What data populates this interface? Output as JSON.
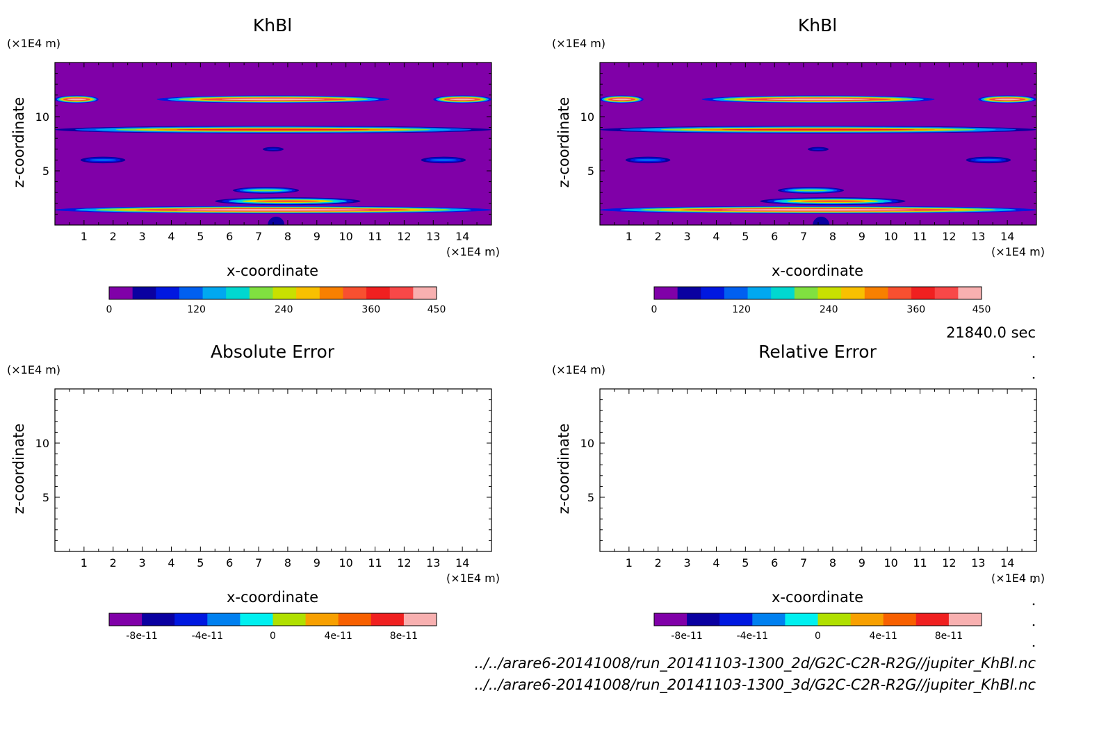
{
  "chart_data": [
    {
      "type": "heatmap",
      "title": "KhBl",
      "xlabel": "x-coordinate",
      "ylabel": "z-coordinate",
      "x_unit": "(×1E4 m)",
      "y_unit": "(×1E4 m)",
      "xlim": [
        0,
        15
      ],
      "ylim": [
        0,
        15
      ],
      "x_ticks": [
        "1",
        "2",
        "3",
        "4",
        "5",
        "6",
        "7",
        "8",
        "9",
        "10",
        "11",
        "12",
        "13",
        "14"
      ],
      "y_ticks": [
        "5",
        "10"
      ],
      "colorbar": {
        "labels": [
          "0",
          "120",
          "240",
          "360",
          "450"
        ],
        "levels": [
          0,
          30,
          60,
          90,
          120,
          150,
          180,
          210,
          240,
          270,
          300,
          330,
          360,
          390,
          420,
          450
        ],
        "colors": [
          "#8000a8",
          "#0a00a0",
          "#0018e0",
          "#0060f0",
          "#00a8f0",
          "#00d8d0",
          "#80e040",
          "#c8e000",
          "#f8c000",
          "#f88000",
          "#f85030",
          "#f02020",
          "#f84848",
          "#f8b0b0"
        ]
      },
      "bands": [
        {
          "z": 1.4,
          "x_range": [
            0,
            15
          ],
          "peak": 420
        },
        {
          "z": 2.2,
          "x_range": [
            5.5,
            10.5
          ],
          "peak": 300
        },
        {
          "z": 3.2,
          "x_range": [
            6.0,
            8.5
          ],
          "peak": 200
        },
        {
          "z": 6.0,
          "x_range": [
            0.8,
            2.5
          ],
          "peak": 110
        },
        {
          "z": 6.0,
          "x_range": [
            12.5,
            14.2
          ],
          "peak": 110
        },
        {
          "z": 7.0,
          "x_range": [
            7.0,
            8.0
          ],
          "peak": 60
        },
        {
          "z": 8.8,
          "x_range": [
            0,
            15
          ],
          "peak": 340
        },
        {
          "z": 11.6,
          "x_range": [
            0,
            1.5
          ],
          "peak": 420
        },
        {
          "z": 11.6,
          "x_range": [
            3.5,
            11.5
          ],
          "peak": 420
        },
        {
          "z": 11.6,
          "x_range": [
            13.0,
            15
          ],
          "peak": 420
        }
      ]
    },
    {
      "type": "heatmap",
      "title": "KhBl",
      "xlabel": "x-coordinate",
      "ylabel": "z-coordinate",
      "x_unit": "(×1E4 m)",
      "y_unit": "(×1E4 m)",
      "xlim": [
        0,
        15
      ],
      "ylim": [
        0,
        15
      ],
      "x_ticks": [
        "1",
        "2",
        "3",
        "4",
        "5",
        "6",
        "7",
        "8",
        "9",
        "10",
        "11",
        "12",
        "13",
        "14"
      ],
      "y_ticks": [
        "5",
        "10"
      ],
      "colorbar": {
        "labels": [
          "0",
          "120",
          "240",
          "360",
          "450"
        ],
        "levels": [
          0,
          30,
          60,
          90,
          120,
          150,
          180,
          210,
          240,
          270,
          300,
          330,
          360,
          390,
          420,
          450
        ],
        "colors": [
          "#8000a8",
          "#0a00a0",
          "#0018e0",
          "#0060f0",
          "#00a8f0",
          "#00d8d0",
          "#80e040",
          "#c8e000",
          "#f8c000",
          "#f88000",
          "#f85030",
          "#f02020",
          "#f84848",
          "#f8b0b0"
        ]
      },
      "bands": [
        {
          "z": 1.4,
          "x_range": [
            0,
            15
          ],
          "peak": 420
        },
        {
          "z": 2.2,
          "x_range": [
            5.5,
            10.5
          ],
          "peak": 300
        },
        {
          "z": 3.2,
          "x_range": [
            6.0,
            8.5
          ],
          "peak": 200
        },
        {
          "z": 6.0,
          "x_range": [
            0.8,
            2.5
          ],
          "peak": 110
        },
        {
          "z": 6.0,
          "x_range": [
            12.5,
            14.2
          ],
          "peak": 110
        },
        {
          "z": 7.0,
          "x_range": [
            7.0,
            8.0
          ],
          "peak": 60
        },
        {
          "z": 8.8,
          "x_range": [
            0,
            15
          ],
          "peak": 340
        },
        {
          "z": 11.6,
          "x_range": [
            0,
            1.5
          ],
          "peak": 420
        },
        {
          "z": 11.6,
          "x_range": [
            3.5,
            11.5
          ],
          "peak": 420
        },
        {
          "z": 11.6,
          "x_range": [
            13.0,
            15
          ],
          "peak": 420
        }
      ]
    },
    {
      "type": "heatmap",
      "title": "Absolute Error",
      "xlabel": "x-coordinate",
      "ylabel": "z-coordinate",
      "x_unit": "(×1E4 m)",
      "y_unit": "(×1E4 m)",
      "xlim": [
        0,
        15
      ],
      "ylim": [
        0,
        15
      ],
      "x_ticks": [
        "1",
        "2",
        "3",
        "4",
        "5",
        "6",
        "7",
        "8",
        "9",
        "10",
        "11",
        "12",
        "13",
        "14"
      ],
      "y_ticks": [
        "5",
        "10"
      ],
      "colorbar": {
        "labels": [
          "-8e-11",
          "-4e-11",
          "0",
          "4e-11",
          "8e-11"
        ],
        "colors": [
          "#8000a8",
          "#0a00a0",
          "#0018e0",
          "#0080f0",
          "#00f0f0",
          "#b0e000",
          "#f8a000",
          "#f86000",
          "#f02020",
          "#f8b0b0"
        ]
      },
      "bands": []
    },
    {
      "type": "heatmap",
      "title": "Relative Error",
      "xlabel": "x-coordinate",
      "ylabel": "z-coordinate",
      "x_unit": "(×1E4 m)",
      "y_unit": "(×1E4 m)",
      "xlim": [
        0,
        15
      ],
      "ylim": [
        0,
        15
      ],
      "x_ticks": [
        "1",
        "2",
        "3",
        "4",
        "5",
        "6",
        "7",
        "8",
        "9",
        "10",
        "11",
        "12",
        "13",
        "14"
      ],
      "y_ticks": [
        "5",
        "10"
      ],
      "colorbar": {
        "labels": [
          "-8e-11",
          "-4e-11",
          "0",
          "4e-11",
          "8e-11"
        ],
        "colors": [
          "#8000a8",
          "#0a00a0",
          "#0018e0",
          "#0080f0",
          "#00f0f0",
          "#b0e000",
          "#f8a000",
          "#f86000",
          "#f02020",
          "#f8b0b0"
        ]
      },
      "bands": []
    }
  ],
  "time_label": "21840.0 sec",
  "file_paths": [
    "../../arare6-20141008/run_20141103-1300_2d/G2C-C2R-R2G//jupiter_KhBl.nc",
    "../../arare6-20141008/run_20141103-1300_3d/G2C-C2R-R2G//jupiter_KhBl.nc"
  ]
}
